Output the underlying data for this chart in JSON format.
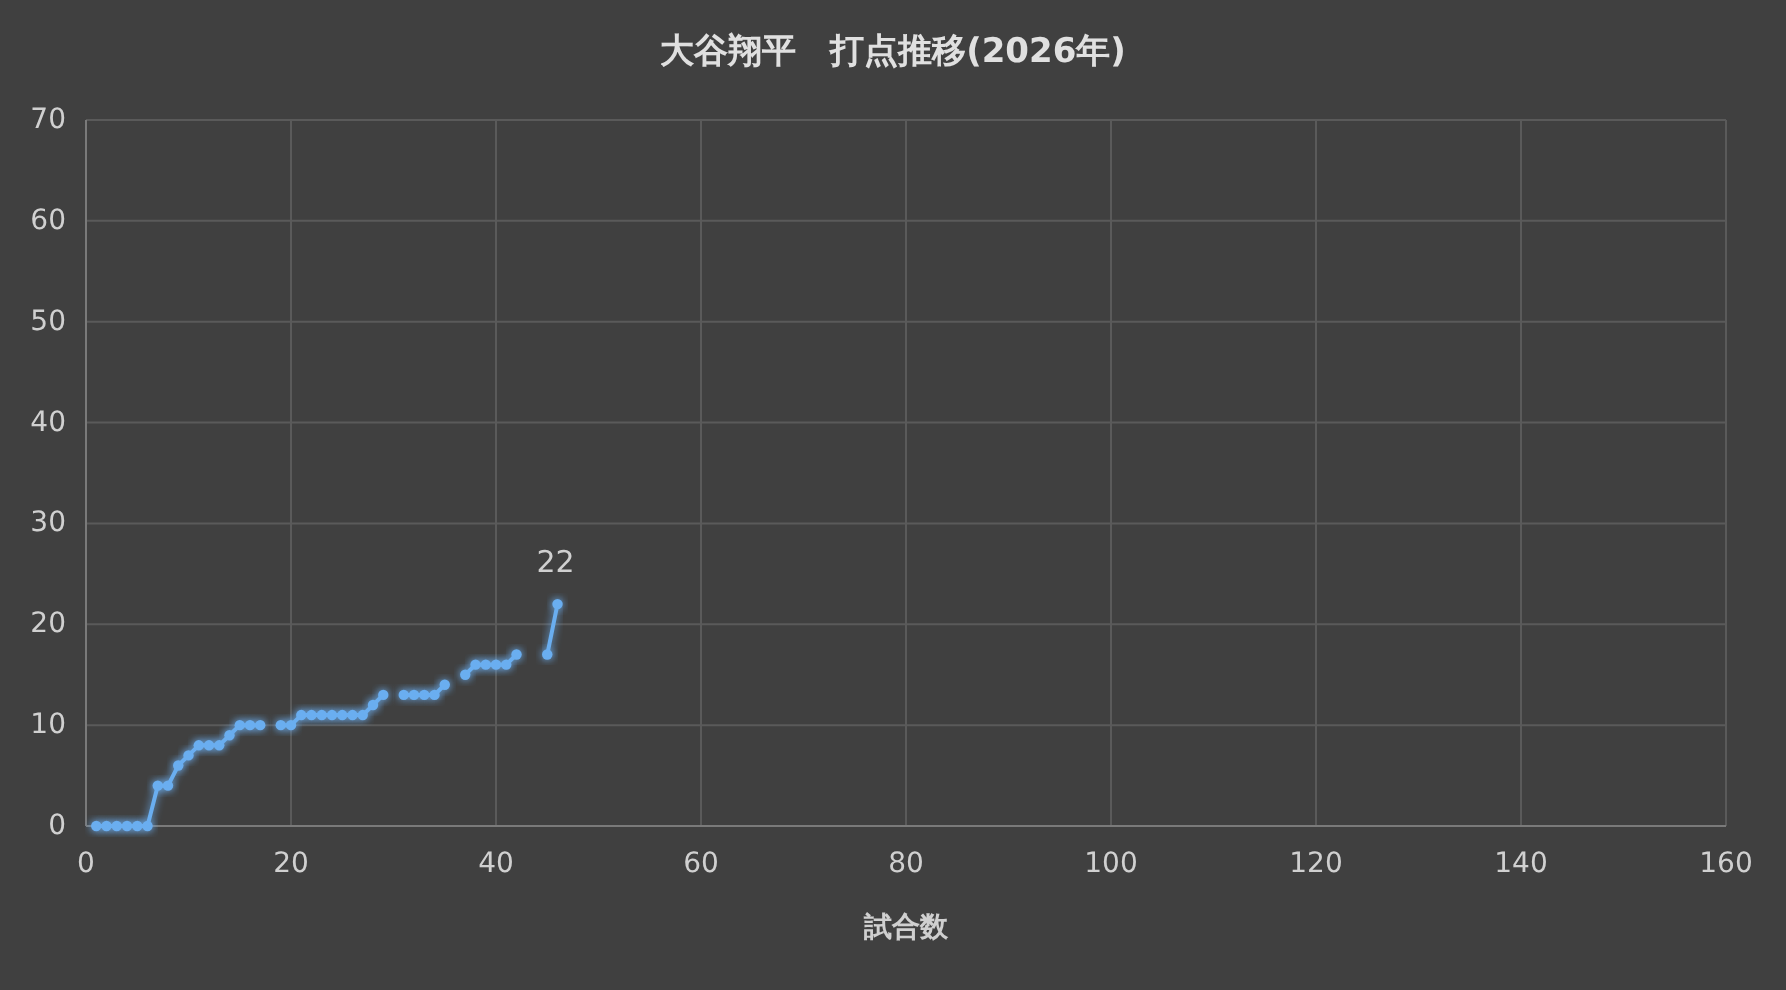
{
  "chart_data": {
    "type": "line",
    "title": "大谷翔平　打点推移(2026年)",
    "xlabel": "試合数",
    "series": [
      {
        "color": "#6aaef0",
        "x": [
          1,
          2,
          3,
          4,
          5,
          6,
          7,
          8,
          9,
          10,
          11,
          12,
          13,
          14,
          15,
          16,
          17
        ],
        "values": [
          0,
          0,
          0,
          0,
          0,
          0,
          4,
          4,
          6,
          7,
          8,
          8,
          8,
          9,
          10,
          10,
          10
        ]
      },
      {
        "color": "#6aaef0",
        "x": [
          19,
          20,
          21,
          22,
          23,
          24,
          25,
          26,
          27,
          28,
          29
        ],
        "values": [
          10,
          10,
          11,
          11,
          11,
          11,
          11,
          11,
          11,
          12,
          13
        ]
      },
      {
        "color": "#6aaef0",
        "x": [
          31,
          32,
          33,
          34,
          35
        ],
        "values": [
          13,
          13,
          13,
          13,
          14
        ]
      },
      {
        "color": "#6aaef0",
        "x": [
          37,
          38,
          39,
          40,
          41,
          42
        ],
        "values": [
          15,
          16,
          16,
          16,
          16,
          17
        ]
      },
      {
        "color": "#6aaef0",
        "x": [
          45,
          46
        ],
        "values": [
          17,
          22
        ],
        "value_labels": [
          null,
          "22"
        ]
      }
    ],
    "xlim": [
      0,
      160
    ],
    "xticks": [
      0,
      20,
      40,
      60,
      80,
      100,
      120,
      140,
      160
    ],
    "ylim": [
      0,
      70
    ],
    "yticks": [
      0,
      10,
      20,
      30,
      40,
      50,
      60,
      70
    ],
    "grid": true,
    "marker": "circle",
    "line_style": "solid"
  }
}
